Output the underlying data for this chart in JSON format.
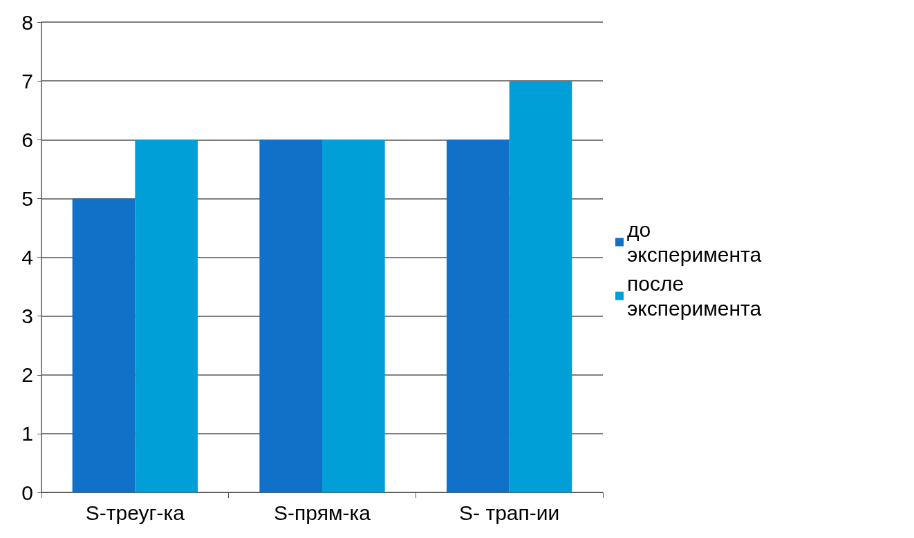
{
  "chart_data": {
    "type": "bar",
    "categories": [
      "S-треуг-ка",
      "S-прям-ка",
      "S- трап-ии"
    ],
    "series": [
      {
        "name": "до эксперимента",
        "color": "#1170c8",
        "values": [
          5,
          6,
          6
        ]
      },
      {
        "name": "после эксперимента",
        "color": "#009fd8",
        "values": [
          6,
          6,
          7
        ]
      }
    ],
    "ylim": [
      0,
      8
    ],
    "yticks": [
      0,
      1,
      2,
      3,
      4,
      5,
      6,
      7,
      8
    ],
    "grid": "y",
    "legend": "right"
  }
}
